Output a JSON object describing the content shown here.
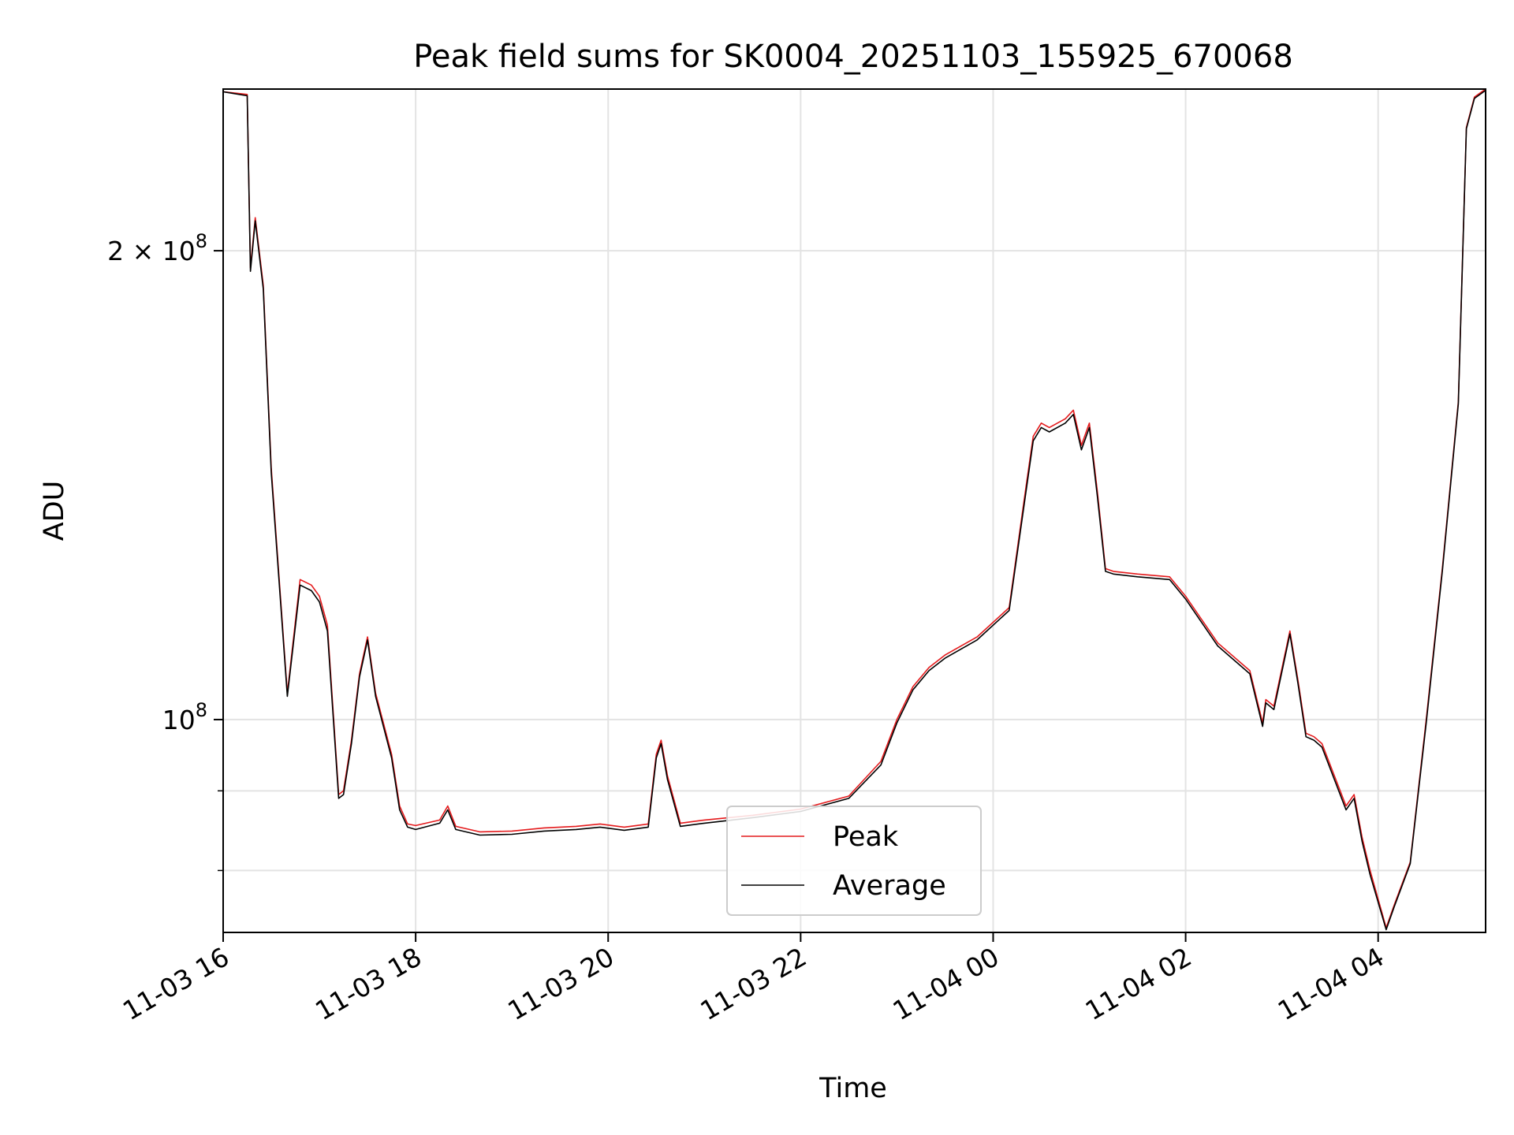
{
  "chart_data": {
    "type": "line",
    "title": "Peak field sums for SK0004_20251103_155925_670068",
    "xlabel": "Time",
    "ylabel": "ADU",
    "yscale": "log",
    "xlim": [
      "2025-11-03 16:00",
      "2025-11-04 05:07"
    ],
    "ylim": [
      73000000,
      254000000
    ],
    "x_ticks": [
      {
        "value": "2025-11-03 16:00",
        "label": "11-03 16"
      },
      {
        "value": "2025-11-03 18:00",
        "label": "11-03 18"
      },
      {
        "value": "2025-11-03 20:00",
        "label": "11-03 20"
      },
      {
        "value": "2025-11-03 22:00",
        "label": "11-03 22"
      },
      {
        "value": "2025-11-04 00:00",
        "label": "11-04 00"
      },
      {
        "value": "2025-11-04 02:00",
        "label": "11-04 02"
      },
      {
        "value": "2025-11-04 04:00",
        "label": "11-04 04"
      }
    ],
    "y_ticks_major": [
      {
        "value": 100000000,
        "base": "10",
        "exp": "8",
        "mant": ""
      },
      {
        "value": 200000000,
        "base": "10",
        "exp": "8",
        "mant": "2 × "
      }
    ],
    "y_ticks_minor": [
      80000000,
      90000000
    ],
    "grid": true,
    "legend": "lower-center",
    "x": [
      "2025-11-03 16:00",
      "2025-11-03 16:15",
      "2025-11-03 16:17",
      "2025-11-03 16:20",
      "2025-11-03 16:25",
      "2025-11-03 16:30",
      "2025-11-03 16:40",
      "2025-11-03 16:48",
      "2025-11-03 16:55",
      "2025-11-03 17:00",
      "2025-11-03 17:05",
      "2025-11-03 17:12",
      "2025-11-03 17:15",
      "2025-11-03 17:20",
      "2025-11-03 17:25",
      "2025-11-03 17:30",
      "2025-11-03 17:35",
      "2025-11-03 17:45",
      "2025-11-03 17:50",
      "2025-11-03 17:55",
      "2025-11-03 18:00",
      "2025-11-03 18:15",
      "2025-11-03 18:20",
      "2025-11-03 18:25",
      "2025-11-03 18:40",
      "2025-11-03 19:00",
      "2025-11-03 19:20",
      "2025-11-03 19:40",
      "2025-11-03 19:55",
      "2025-11-03 20:10",
      "2025-11-03 20:25",
      "2025-11-03 20:30",
      "2025-11-03 20:33",
      "2025-11-03 20:37",
      "2025-11-03 20:45",
      "2025-11-03 21:00",
      "2025-11-03 21:30",
      "2025-11-03 22:00",
      "2025-11-03 22:30",
      "2025-11-03 22:50",
      "2025-11-03 23:00",
      "2025-11-03 23:10",
      "2025-11-03 23:20",
      "2025-11-03 23:30",
      "2025-11-03 23:50",
      "2025-11-04 00:10",
      "2025-11-04 00:20",
      "2025-11-04 00:25",
      "2025-11-04 00:30",
      "2025-11-04 00:35",
      "2025-11-04 00:45",
      "2025-11-04 00:50",
      "2025-11-04 00:55",
      "2025-11-04 01:00",
      "2025-11-04 01:05",
      "2025-11-04 01:10",
      "2025-11-04 01:15",
      "2025-11-04 01:30",
      "2025-11-04 01:50",
      "2025-11-04 02:00",
      "2025-11-04 02:20",
      "2025-11-04 02:40",
      "2025-11-04 02:48",
      "2025-11-04 02:50",
      "2025-11-04 02:55",
      "2025-11-04 03:05",
      "2025-11-04 03:10",
      "2025-11-04 03:15",
      "2025-11-04 03:20",
      "2025-11-04 03:25",
      "2025-11-04 03:40",
      "2025-11-04 03:45",
      "2025-11-04 03:50",
      "2025-11-04 03:55",
      "2025-11-04 04:05",
      "2025-11-04 04:10",
      "2025-11-04 04:20",
      "2025-11-04 04:30",
      "2025-11-04 04:40",
      "2025-11-04 04:50",
      "2025-11-04 04:55",
      "2025-11-04 05:00",
      "2025-11-04 05:07"
    ],
    "series": [
      {
        "name": "Peak",
        "color": "#e41a1c",
        "values": [
          253000000,
          252000000,
          195000000,
          210000000,
          190000000,
          145000000,
          104000000,
          123000000,
          122000000,
          120000000,
          115000000,
          89500000,
          90000000,
          97000000,
          107000000,
          113000000,
          104000000,
          95000000,
          88000000,
          85700000,
          85500000,
          86200000,
          88000000,
          85400000,
          84700000,
          84800000,
          85200000,
          85400000,
          85700000,
          85300000,
          85700000,
          95000000,
          97000000,
          92000000,
          85800000,
          86200000,
          86800000,
          87600000,
          89300000,
          94000000,
          100000000,
          105000000,
          108000000,
          110000000,
          113000000,
          118000000,
          140000000,
          152000000,
          155000000,
          154000000,
          156000000,
          158000000,
          150000000,
          155000000,
          140000000,
          125000000,
          124500000,
          124000000,
          123500000,
          120000000,
          112000000,
          107500000,
          99500000,
          103000000,
          102000000,
          114000000,
          106000000,
          98000000,
          97500000,
          96500000,
          88000000,
          89500000,
          84000000,
          80000000,
          73500000,
          76000000,
          81000000,
          100000000,
          125000000,
          160000000,
          240000000,
          251000000,
          254000000
        ]
      },
      {
        "name": "Average",
        "color": "#000000",
        "values": [
          253000000,
          251500000,
          194000000,
          209000000,
          189000000,
          144000000,
          103500000,
          122000000,
          121000000,
          119000000,
          114000000,
          89000000,
          89500000,
          96500000,
          106500000,
          112500000,
          103500000,
          94500000,
          87500000,
          85300000,
          85000000,
          85800000,
          87500000,
          85000000,
          84300000,
          84400000,
          84800000,
          85000000,
          85300000,
          84900000,
          85300000,
          94500000,
          96500000,
          91500000,
          85400000,
          85800000,
          86500000,
          87300000,
          89000000,
          93500000,
          99500000,
          104500000,
          107500000,
          109500000,
          112500000,
          117500000,
          139000000,
          151000000,
          154000000,
          153000000,
          155000000,
          157000000,
          149000000,
          154000000,
          139000000,
          124500000,
          124000000,
          123500000,
          123000000,
          119500000,
          111500000,
          107000000,
          99000000,
          102500000,
          101500000,
          113500000,
          105500000,
          97500000,
          97000000,
          96000000,
          87500000,
          89000000,
          83500000,
          79500000,
          73300000,
          75800000,
          80800000,
          99500000,
          124500000,
          159500000,
          239500000,
          250500000,
          253500000
        ]
      }
    ],
    "annotations": []
  }
}
